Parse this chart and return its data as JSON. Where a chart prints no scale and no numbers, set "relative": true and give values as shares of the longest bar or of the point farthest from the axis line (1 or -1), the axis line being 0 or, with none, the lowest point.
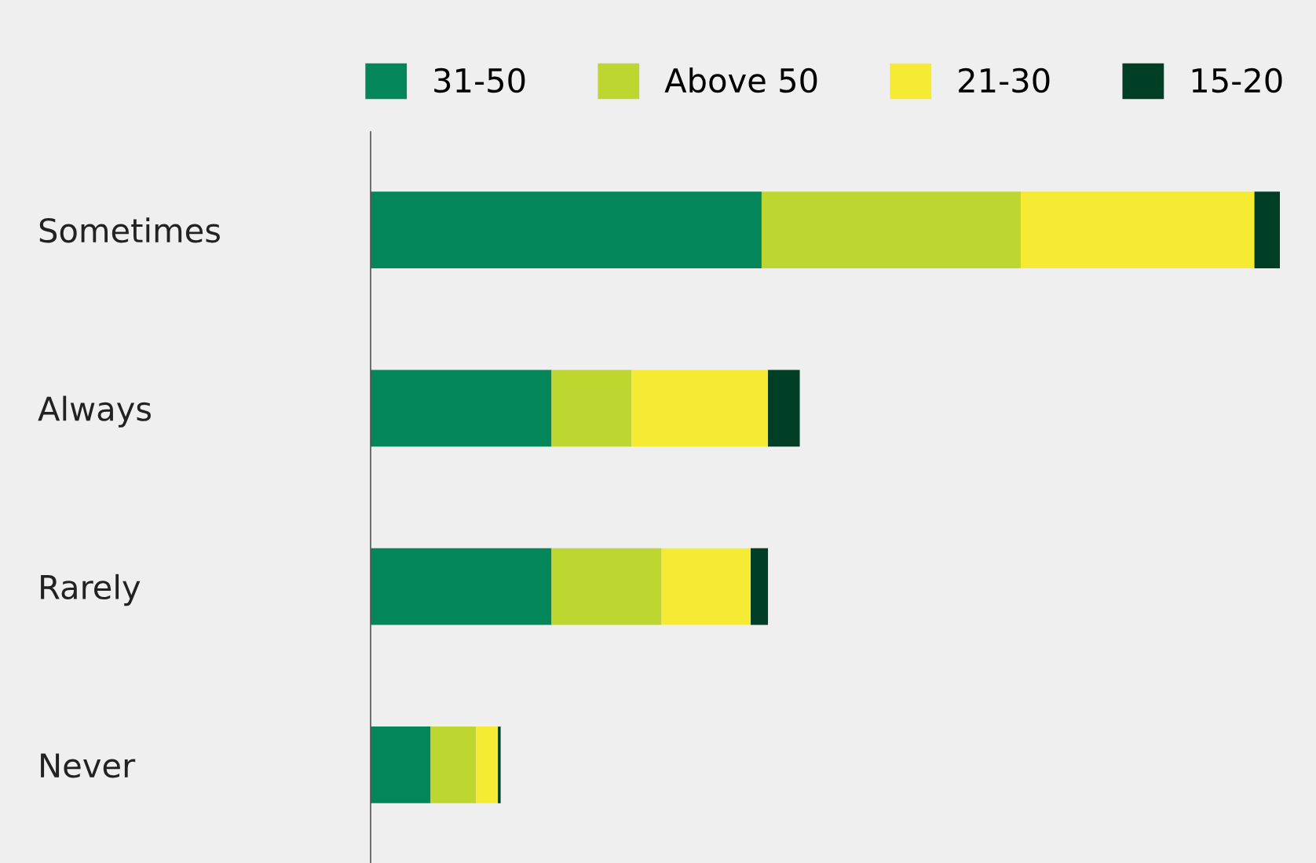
{
  "chart_data": {
    "type": "bar",
    "orientation": "horizontal",
    "stacked": true,
    "relative": true,
    "legend": "top",
    "grid": false,
    "categories": [
      "Sometimes",
      "Always",
      "Rarely",
      "Never"
    ],
    "series": [
      {
        "name": "31-50",
        "color": "#02865a",
        "values": [
          0.43,
          0.199,
          0.199,
          0.066
        ]
      },
      {
        "name": "Above 50",
        "color": "#bed630",
        "values": [
          0.285,
          0.088,
          0.121,
          0.05
        ]
      },
      {
        "name": "21-30",
        "color": "#f5eb33",
        "values": [
          0.257,
          0.15,
          0.098,
          0.024
        ]
      },
      {
        "name": "15-20",
        "color": "#003f25",
        "values": [
          0.028,
          0.035,
          0.019,
          0.003
        ]
      }
    ]
  }
}
